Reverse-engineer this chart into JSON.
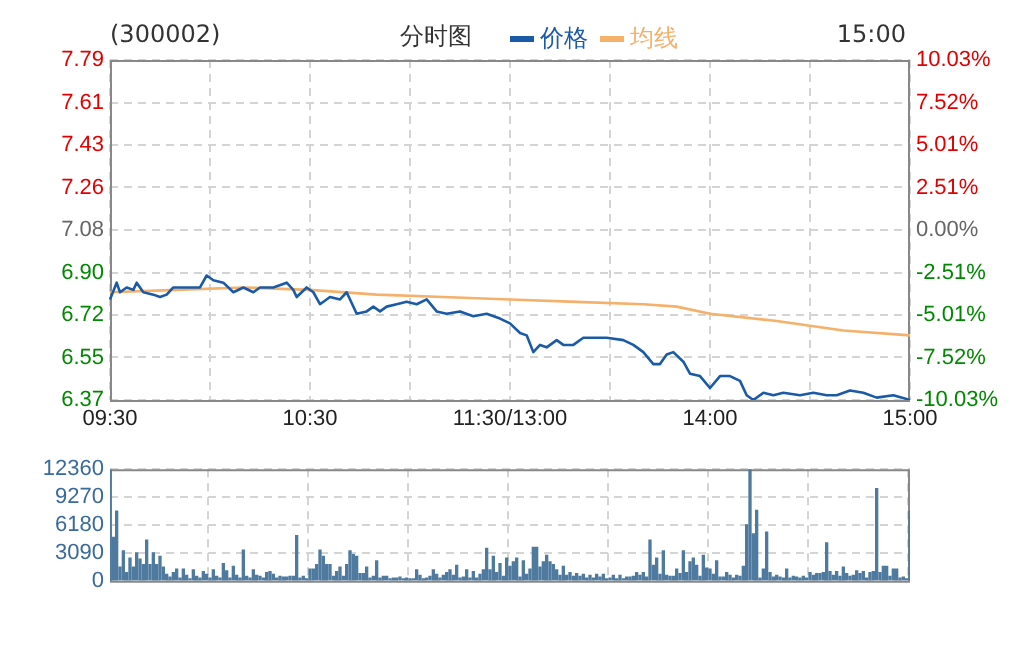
{
  "chart_data": [
    {
      "type": "line",
      "title": "(300002)",
      "subtitle": "分时图",
      "annotations": [
        "15:00"
      ],
      "legend": "top",
      "grid": true,
      "categories": [
        "09:30",
        null,
        null,
        null,
        null,
        null,
        null,
        null,
        null,
        null,
        null,
        null,
        null,
        null,
        null,
        null,
        null,
        null,
        null,
        null,
        null,
        null,
        null,
        null,
        null,
        null,
        null,
        null,
        null,
        null,
        null,
        null,
        null,
        null,
        null,
        null,
        null,
        null,
        null,
        null,
        null,
        null,
        null,
        null,
        null,
        null,
        null,
        null,
        null,
        null,
        null,
        null,
        null,
        null,
        null,
        null,
        null,
        null,
        null,
        null,
        "10:30",
        null,
        null,
        null,
        null,
        null,
        null,
        null,
        null,
        null,
        null,
        null,
        null,
        null,
        null,
        null,
        null,
        null,
        null,
        null,
        null,
        null,
        null,
        null,
        null,
        null,
        null,
        null,
        null,
        null,
        null,
        null,
        null,
        null,
        null,
        null,
        null,
        null,
        null,
        null,
        null,
        null,
        null,
        null,
        null,
        null,
        null,
        null,
        null,
        null,
        null,
        null,
        null,
        null,
        null,
        null,
        null,
        null,
        null,
        null,
        "11:30/13:00",
        null,
        null,
        null,
        null,
        null,
        null,
        null,
        null,
        null,
        null,
        null,
        null,
        null,
        null,
        null,
        null,
        null,
        null,
        null,
        null,
        null,
        null,
        null,
        null,
        null,
        null,
        null,
        null,
        null,
        null,
        null,
        null,
        null,
        null,
        null,
        null,
        null,
        null,
        null,
        null,
        null,
        null,
        null,
        null,
        null,
        null,
        null,
        null,
        null,
        null,
        null,
        null,
        null,
        null,
        null,
        null,
        null,
        null,
        null,
        "14:00",
        null,
        null,
        null,
        null,
        null,
        null,
        null,
        null,
        null,
        null,
        null,
        null,
        null,
        null,
        null,
        null,
        null,
        null,
        null,
        null,
        null,
        null,
        null,
        null,
        null,
        null,
        null,
        null,
        null,
        null,
        null,
        null,
        null,
        null,
        null,
        null,
        null,
        null,
        null,
        null,
        null,
        null,
        null,
        null,
        null,
        null,
        null,
        null,
        null,
        null,
        null,
        null,
        null,
        null,
        null,
        null,
        null,
        null,
        null,
        "15:00"
      ],
      "ylim": [
        6.37,
        7.79
      ],
      "yticks": [
        {
          "value": 6.37,
          "label": "6.37"
        },
        {
          "value": 6.5475,
          "label": "6.55"
        },
        {
          "value": 6.725,
          "label": "6.72"
        },
        {
          "value": 6.9025,
          "label": "6.90"
        },
        {
          "value": 7.08,
          "label": "7.08"
        },
        {
          "value": 7.2575,
          "label": "7.26"
        },
        {
          "value": 7.435,
          "label": "7.43"
        },
        {
          "value": 7.6125,
          "label": "7.61"
        },
        {
          "value": 7.79,
          "label": "7.79"
        }
      ],
      "y2lim": [
        -10.03,
        10.03
      ],
      "y2ticks": [
        {
          "value": -10.03,
          "label": "-10.03%"
        },
        {
          "value": -7.5225,
          "label": "-7.52%"
        },
        {
          "value": -5.015,
          "label": "-5.01%"
        },
        {
          "value": -2.5075,
          "label": "-2.51%"
        },
        {
          "value": 0,
          "label": "0.00%"
        },
        {
          "value": 2.5075,
          "label": "2.51%"
        },
        {
          "value": 5.015,
          "label": "5.01%"
        },
        {
          "value": 7.5225,
          "label": "7.52%"
        },
        {
          "value": 10.03,
          "label": "10.03%"
        }
      ],
      "series": [
        {
          "name": "价格",
          "color": "#1a5aa6",
          "values": [
            6.79,
            null,
            6.86,
            6.82,
            null,
            6.84,
            null,
            6.83,
            6.86,
            null,
            6.82,
            null,
            null,
            6.81,
            null,
            6.8,
            null,
            6.81,
            null,
            6.84,
            null,
            6.84,
            null,
            null,
            null,
            null,
            null,
            6.84,
            null,
            6.89,
            null,
            6.87,
            null,
            null,
            6.86,
            null,
            null,
            6.82,
            null,
            null,
            6.84,
            null,
            null,
            6.82,
            null,
            6.84,
            null,
            null,
            null,
            6.84,
            null,
            null,
            null,
            6.86,
            null,
            6.83,
            6.8,
            null,
            null,
            6.84,
            null,
            6.82,
            null,
            6.77,
            null,
            null,
            6.8,
            null,
            null,
            6.79,
            null,
            6.82,
            null,
            null,
            6.73,
            null,
            null,
            6.74,
            null,
            6.76,
            null,
            6.74,
            null,
            6.76,
            null,
            null,
            6.77,
            null,
            null,
            6.78,
            null,
            null,
            6.77,
            null,
            null,
            6.79,
            null,
            null,
            6.74,
            null,
            null,
            6.73,
            null,
            null,
            null,
            6.74,
            null,
            null,
            null,
            6.72,
            null,
            null,
            null,
            6.73,
            null,
            null,
            null,
            6.71,
            null,
            null,
            6.69,
            null,
            null,
            6.65,
            null,
            6.64,
            null,
            6.57,
            null,
            6.6,
            null,
            6.59,
            null,
            null,
            6.62,
            null,
            6.6,
            null,
            null,
            6.6,
            null,
            null,
            6.63,
            null,
            null,
            null,
            null,
            null,
            null,
            6.63,
            null,
            null,
            null,
            null,
            6.62,
            null,
            null,
            6.6,
            null,
            null,
            6.57,
            null,
            null,
            6.52,
            null,
            6.52,
            null,
            6.56,
            null,
            6.57,
            null,
            null,
            6.53,
            null,
            6.48,
            null,
            null,
            6.47,
            null,
            null,
            6.42,
            null,
            null,
            6.47,
            null,
            null,
            6.47,
            null,
            null,
            6.45,
            null,
            6.39,
            null,
            6.37,
            null,
            null,
            6.4,
            null,
            null,
            6.39,
            null,
            null,
            6.4,
            null,
            null,
            null,
            null,
            6.39,
            null,
            null,
            null,
            6.4,
            null,
            null,
            null,
            6.39,
            null,
            null,
            6.39,
            null,
            null,
            null,
            6.41,
            null,
            null,
            null,
            6.4,
            null,
            null,
            null,
            6.38,
            null,
            null,
            null,
            null,
            6.39,
            null,
            null,
            null,
            null,
            6.37
          ]
        },
        {
          "name": "均线",
          "color": "#f5b06a",
          "values": [
            6.82,
            null,
            null,
            null,
            null,
            null,
            null,
            null,
            null,
            null,
            null,
            null,
            null,
            null,
            null,
            null,
            null,
            null,
            null,
            null,
            6.83,
            null,
            null,
            null,
            null,
            null,
            null,
            null,
            null,
            null,
            null,
            null,
            null,
            null,
            null,
            null,
            null,
            null,
            null,
            null,
            6.84,
            null,
            null,
            null,
            null,
            null,
            null,
            null,
            null,
            null,
            null,
            null,
            null,
            null,
            null,
            null,
            null,
            null,
            null,
            null,
            6.83,
            null,
            null,
            null,
            null,
            null,
            null,
            null,
            null,
            null,
            null,
            null,
            null,
            null,
            null,
            null,
            null,
            null,
            null,
            null,
            6.81,
            null,
            null,
            null,
            null,
            null,
            null,
            null,
            null,
            null,
            null,
            null,
            null,
            null,
            null,
            null,
            null,
            null,
            null,
            null,
            6.8,
            null,
            null,
            null,
            null,
            null,
            null,
            null,
            null,
            null,
            null,
            null,
            null,
            null,
            null,
            null,
            null,
            null,
            null,
            null,
            6.79,
            null,
            null,
            null,
            null,
            null,
            null,
            null,
            null,
            null,
            null,
            null,
            null,
            null,
            null,
            null,
            null,
            null,
            null,
            null,
            6.78,
            null,
            null,
            null,
            null,
            null,
            null,
            null,
            null,
            null,
            null,
            null,
            null,
            null,
            null,
            null,
            null,
            null,
            null,
            null,
            6.77,
            null,
            null,
            null,
            null,
            null,
            null,
            null,
            null,
            null,
            6.76,
            null,
            null,
            null,
            null,
            null,
            null,
            null,
            null,
            null,
            6.73,
            null,
            null,
            null,
            null,
            null,
            null,
            null,
            null,
            null,
            null,
            null,
            null,
            null,
            null,
            null,
            null,
            null,
            null,
            null,
            6.7,
            null,
            null,
            null,
            null,
            null,
            null,
            null,
            null,
            null,
            null,
            null,
            null,
            null,
            null,
            null,
            null,
            null,
            null,
            null,
            6.66,
            null,
            null,
            null,
            null,
            null,
            null,
            null,
            null,
            null,
            null,
            null,
            null,
            null,
            null,
            null,
            null,
            null,
            null,
            null,
            6.64
          ]
        }
      ]
    },
    {
      "type": "bar",
      "grid": true,
      "tick_labels": "y",
      "color": "#4f7a9f",
      "ylim": [
        0,
        12360
      ],
      "yticks": [
        0,
        3090,
        6180,
        9270,
        12360
      ],
      "categories": [
        null,
        null,
        null,
        null,
        null,
        null,
        null,
        null,
        null,
        null,
        null,
        null,
        null,
        null,
        null,
        null,
        null,
        null,
        null,
        null,
        null,
        null,
        null,
        null,
        null,
        null,
        null,
        null,
        null,
        null,
        null,
        null,
        null,
        null,
        null,
        null,
        null,
        null,
        null,
        null,
        null,
        null,
        null,
        null,
        null,
        null,
        null,
        null,
        null,
        null,
        null,
        null,
        null,
        null,
        null,
        null,
        null,
        null,
        null,
        null,
        null,
        null,
        null,
        null,
        null,
        null,
        null,
        null,
        null,
        null,
        null,
        null,
        null,
        null,
        null,
        null,
        null,
        null,
        null,
        null,
        null,
        null,
        null,
        null,
        null,
        null,
        null,
        null,
        null,
        null,
        null,
        null,
        null,
        null,
        null,
        null,
        null,
        null,
        null,
        null,
        null,
        null,
        null,
        null,
        null,
        null,
        null,
        null,
        null,
        null,
        null,
        null,
        null,
        null,
        null,
        null,
        null,
        null,
        null,
        null,
        null,
        null,
        null,
        null,
        null,
        null,
        null,
        null,
        null,
        null,
        null,
        null,
        null,
        null,
        null,
        null,
        null,
        null,
        null,
        null,
        null,
        null,
        null,
        null,
        null,
        null,
        null,
        null,
        null,
        null,
        null,
        null,
        null,
        null,
        null,
        null,
        null,
        null,
        null,
        null,
        null,
        null,
        null,
        null,
        null,
        null,
        null,
        null,
        null,
        null,
        null,
        null,
        null,
        null,
        null,
        null,
        null,
        null,
        null,
        null,
        null,
        null,
        null,
        null,
        null,
        null,
        null,
        null,
        null,
        null,
        null,
        null,
        null,
        null,
        null,
        null,
        null,
        null,
        null,
        null,
        null,
        null,
        null,
        null,
        null,
        null,
        null,
        null,
        null,
        null,
        null,
        null,
        null,
        null,
        null,
        null,
        null,
        null,
        null,
        null,
        null,
        null,
        null,
        null,
        null,
        null,
        null,
        null,
        null,
        null,
        null,
        null,
        null,
        null,
        null,
        null,
        null,
        null,
        null,
        null,
        null
      ],
      "values": [
        12300,
        4800,
        7700,
        1500,
        3300,
        900,
        2500,
        1500,
        3100,
        2400,
        1800,
        4500,
        1800,
        3100,
        1800,
        2700,
        1500,
        700,
        400,
        900,
        1300,
        300,
        1300,
        600,
        200,
        1200,
        500,
        300,
        1000,
        700,
        300,
        1200,
        500,
        300,
        1900,
        1100,
        300,
        1600,
        600,
        300,
        3400,
        500,
        300,
        1200,
        600,
        500,
        300,
        900,
        1000,
        700,
        300,
        500,
        400,
        400,
        500,
        500,
        5000,
        300,
        500,
        200,
        1300,
        1300,
        1800,
        3400,
        2700,
        1800,
        1800,
        500,
        1000,
        1500,
        500,
        1800,
        3300,
        2900,
        2700,
        800,
        800,
        1500,
        300,
        500,
        2200,
        300,
        500,
        500,
        200,
        300,
        300,
        400,
        200,
        300,
        200,
        200,
        1200,
        600,
        200,
        300,
        500,
        1200,
        700,
        300,
        600,
        900,
        1200,
        600,
        1700,
        300,
        400,
        1200,
        300,
        1000,
        300,
        700,
        1200,
        3600,
        1200,
        2700,
        900,
        1900,
        500,
        2500,
        1600,
        2100,
        2500,
        400,
        2200,
        700,
        1300,
        3700,
        3700,
        1500,
        2100,
        2800,
        2100,
        1800,
        1200,
        600,
        1600,
        600,
        900,
        500,
        800,
        500,
        700,
        300,
        600,
        300,
        700,
        400,
        700,
        200,
        300,
        600,
        200,
        600,
        200,
        400,
        400,
        500,
        900,
        600,
        900,
        400,
        4500,
        1700,
        2500,
        700,
        3300,
        600,
        500,
        500,
        1300,
        800,
        3300,
        900,
        2100,
        2500,
        1700,
        500,
        2800,
        1400,
        1300,
        700,
        2200,
        400,
        400,
        900,
        600,
        300,
        600,
        500,
        1600,
        6200,
        12300,
        5200,
        7800,
        300,
        1300,
        5400,
        900,
        400,
        600,
        400,
        300,
        1300,
        300,
        500,
        400,
        300,
        500,
        300,
        900,
        600,
        800,
        800,
        900,
        4200,
        1000,
        600,
        1000,
        500,
        1500,
        800,
        500,
        600,
        1100,
        800,
        1000,
        300,
        900,
        1000,
        10200,
        900,
        1600,
        1600,
        500,
        1300,
        1300,
        300,
        400,
        200,
        7700
      ]
    }
  ]
}
